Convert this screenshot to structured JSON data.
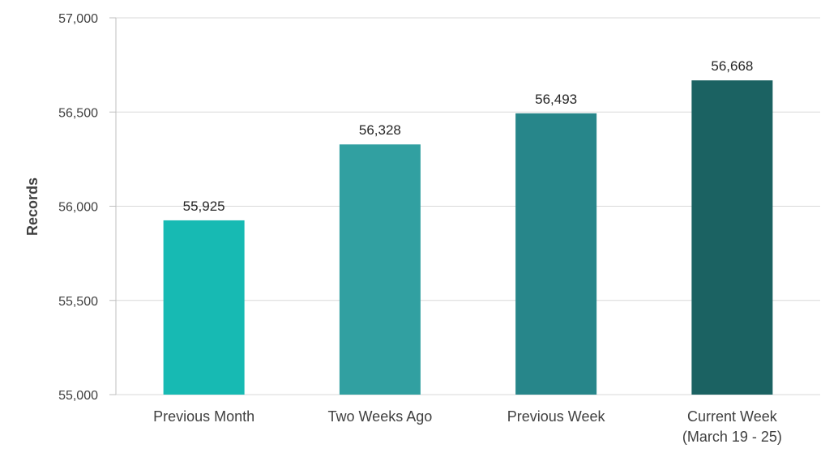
{
  "chart_data": {
    "type": "bar",
    "title": "",
    "xlabel": "",
    "ylabel": "Records",
    "categories": [
      [
        "Previous Month"
      ],
      [
        "Two Weeks Ago"
      ],
      [
        "Previous Week"
      ],
      [
        "Current Week",
        "(March 19 - 25)"
      ]
    ],
    "values": [
      55925,
      56328,
      56493,
      56668
    ],
    "value_labels": [
      "55,925",
      "56,328",
      "56,493",
      "56,668"
    ],
    "colors": [
      "#17BAB3",
      "#31A0A1",
      "#27868A",
      "#1B6262"
    ],
    "ylim": [
      55000,
      57000
    ],
    "yticks": [
      55000,
      55500,
      56000,
      56500,
      57000
    ],
    "ytick_labels": [
      "55,000",
      "55,500",
      "56,000",
      "56,500",
      "57,000"
    ],
    "grid": true,
    "legend": "none"
  }
}
